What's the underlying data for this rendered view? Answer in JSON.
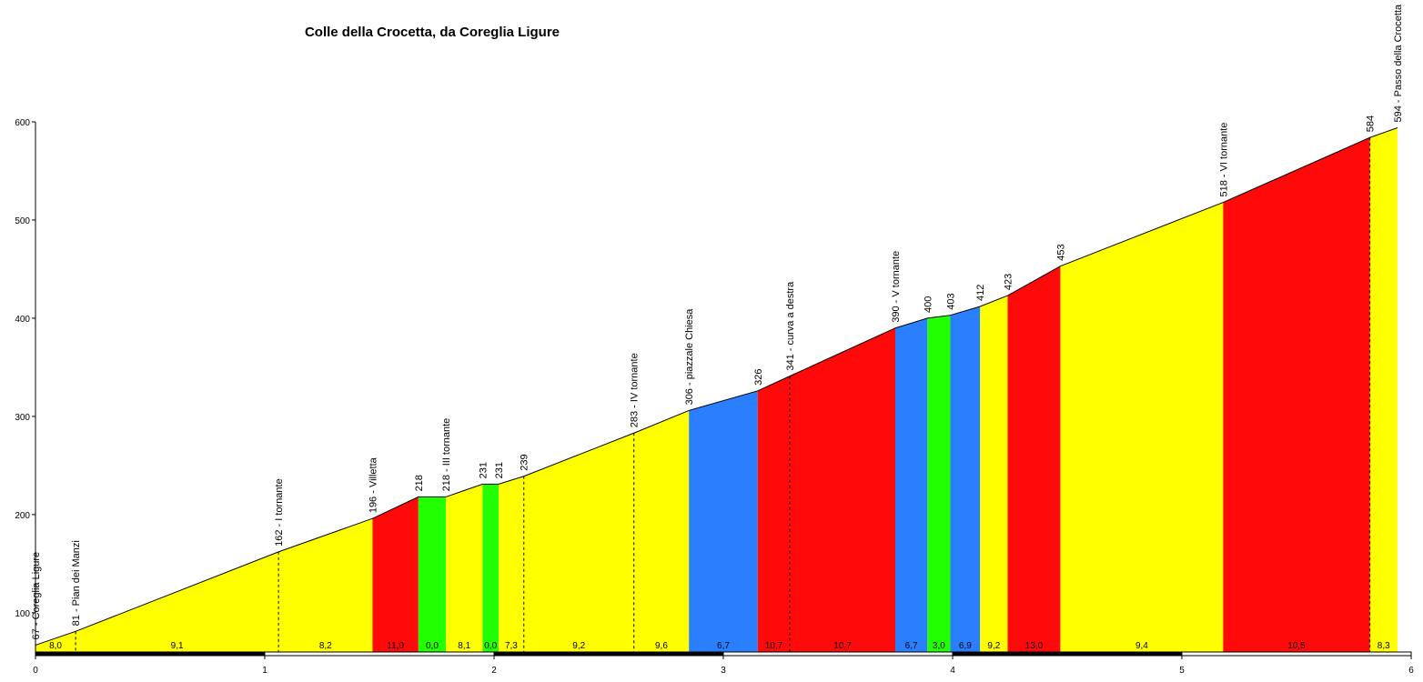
{
  "chart_data": {
    "type": "area",
    "title": "Colle della Crocetta, da Coreglia Ligure",
    "xlabel": "",
    "ylabel": "",
    "xlim": [
      0,
      6
    ],
    "ylim": [
      60,
      600
    ],
    "x_ticks": [
      "0",
      "1",
      "2",
      "3",
      "4",
      "5",
      "6"
    ],
    "y_ticks": [
      "100",
      "200",
      "300",
      "400",
      "500",
      "600"
    ],
    "y_tick_values": [
      100,
      200,
      300,
      400,
      500,
      600
    ],
    "colors": {
      "yellow": "#ffff00",
      "red": "#ff0a0a",
      "green": "#22ff00",
      "blue": "#2a7fff"
    },
    "points": [
      {
        "x": 0.0,
        "y": 67,
        "label": "67 - Coreglia Ligure"
      },
      {
        "x": 0.175,
        "y": 81,
        "label": "81 - Pian dei Manzi"
      },
      {
        "x": 1.06,
        "y": 162,
        "label": "162 - I tornante"
      },
      {
        "x": 1.47,
        "y": 196,
        "label": "196 - Villetta"
      },
      {
        "x": 1.67,
        "y": 218,
        "label": "218"
      },
      {
        "x": 1.79,
        "y": 218,
        "label": "218 - III tornante"
      },
      {
        "x": 1.95,
        "y": 231,
        "label": "231"
      },
      {
        "x": 2.02,
        "y": 231,
        "label": "231"
      },
      {
        "x": 2.13,
        "y": 239,
        "label": "239"
      },
      {
        "x": 2.61,
        "y": 283,
        "label": "283 - IV tornante"
      },
      {
        "x": 2.85,
        "y": 306,
        "label": "306 - piazzale Chiesa"
      },
      {
        "x": 3.15,
        "y": 326,
        "label": "326"
      },
      {
        "x": 3.29,
        "y": 341,
        "label": "341 - curva a destra"
      },
      {
        "x": 3.75,
        "y": 390,
        "label": "390 - V tornante"
      },
      {
        "x": 3.89,
        "y": 400,
        "label": "400"
      },
      {
        "x": 3.99,
        "y": 403,
        "label": "403"
      },
      {
        "x": 4.12,
        "y": 412,
        "label": "412"
      },
      {
        "x": 4.24,
        "y": 423,
        "label": "423"
      },
      {
        "x": 4.47,
        "y": 453,
        "label": "453"
      },
      {
        "x": 5.18,
        "y": 518,
        "label": "518 - VI tornante"
      },
      {
        "x": 5.82,
        "y": 584,
        "label": "584"
      },
      {
        "x": 5.94,
        "y": 594,
        "label": "594 - Passo della Crocetta"
      }
    ],
    "segments": [
      {
        "grade": "8,0",
        "color": "yellow",
        "dashed_end": true
      },
      {
        "grade": "9,1",
        "color": "yellow",
        "dashed_end": true
      },
      {
        "grade": "8,2",
        "color": "yellow",
        "dashed_end": false
      },
      {
        "grade": "11,0",
        "color": "red",
        "dashed_end": false
      },
      {
        "grade": "0,0",
        "color": "green",
        "dashed_end": false
      },
      {
        "grade": "8,1",
        "color": "yellow",
        "dashed_end": false
      },
      {
        "grade": "0,0",
        "color": "green",
        "dashed_end": false
      },
      {
        "grade": "7,3",
        "color": "yellow",
        "dashed_end": true
      },
      {
        "grade": "9,2",
        "color": "yellow",
        "dashed_end": true
      },
      {
        "grade": "9,6",
        "color": "yellow",
        "dashed_end": false
      },
      {
        "grade": "6,7",
        "color": "blue",
        "dashed_end": false
      },
      {
        "grade": "10,7",
        "color": "red",
        "dashed_end": true
      },
      {
        "grade": "10,7",
        "color": "red",
        "dashed_end": false
      },
      {
        "grade": "6,7",
        "color": "blue",
        "dashed_end": false
      },
      {
        "grade": "3,0",
        "color": "green",
        "dashed_end": false
      },
      {
        "grade": "6,9",
        "color": "blue",
        "dashed_end": false
      },
      {
        "grade": "9,2",
        "color": "yellow",
        "dashed_end": false
      },
      {
        "grade": "13,0",
        "color": "red",
        "dashed_end": false
      },
      {
        "grade": "9,4",
        "color": "yellow",
        "dashed_end": false
      },
      {
        "grade": "10,5",
        "color": "red",
        "dashed_end": true
      },
      {
        "grade": "8,3",
        "color": "yellow",
        "dashed_end": false
      }
    ]
  }
}
